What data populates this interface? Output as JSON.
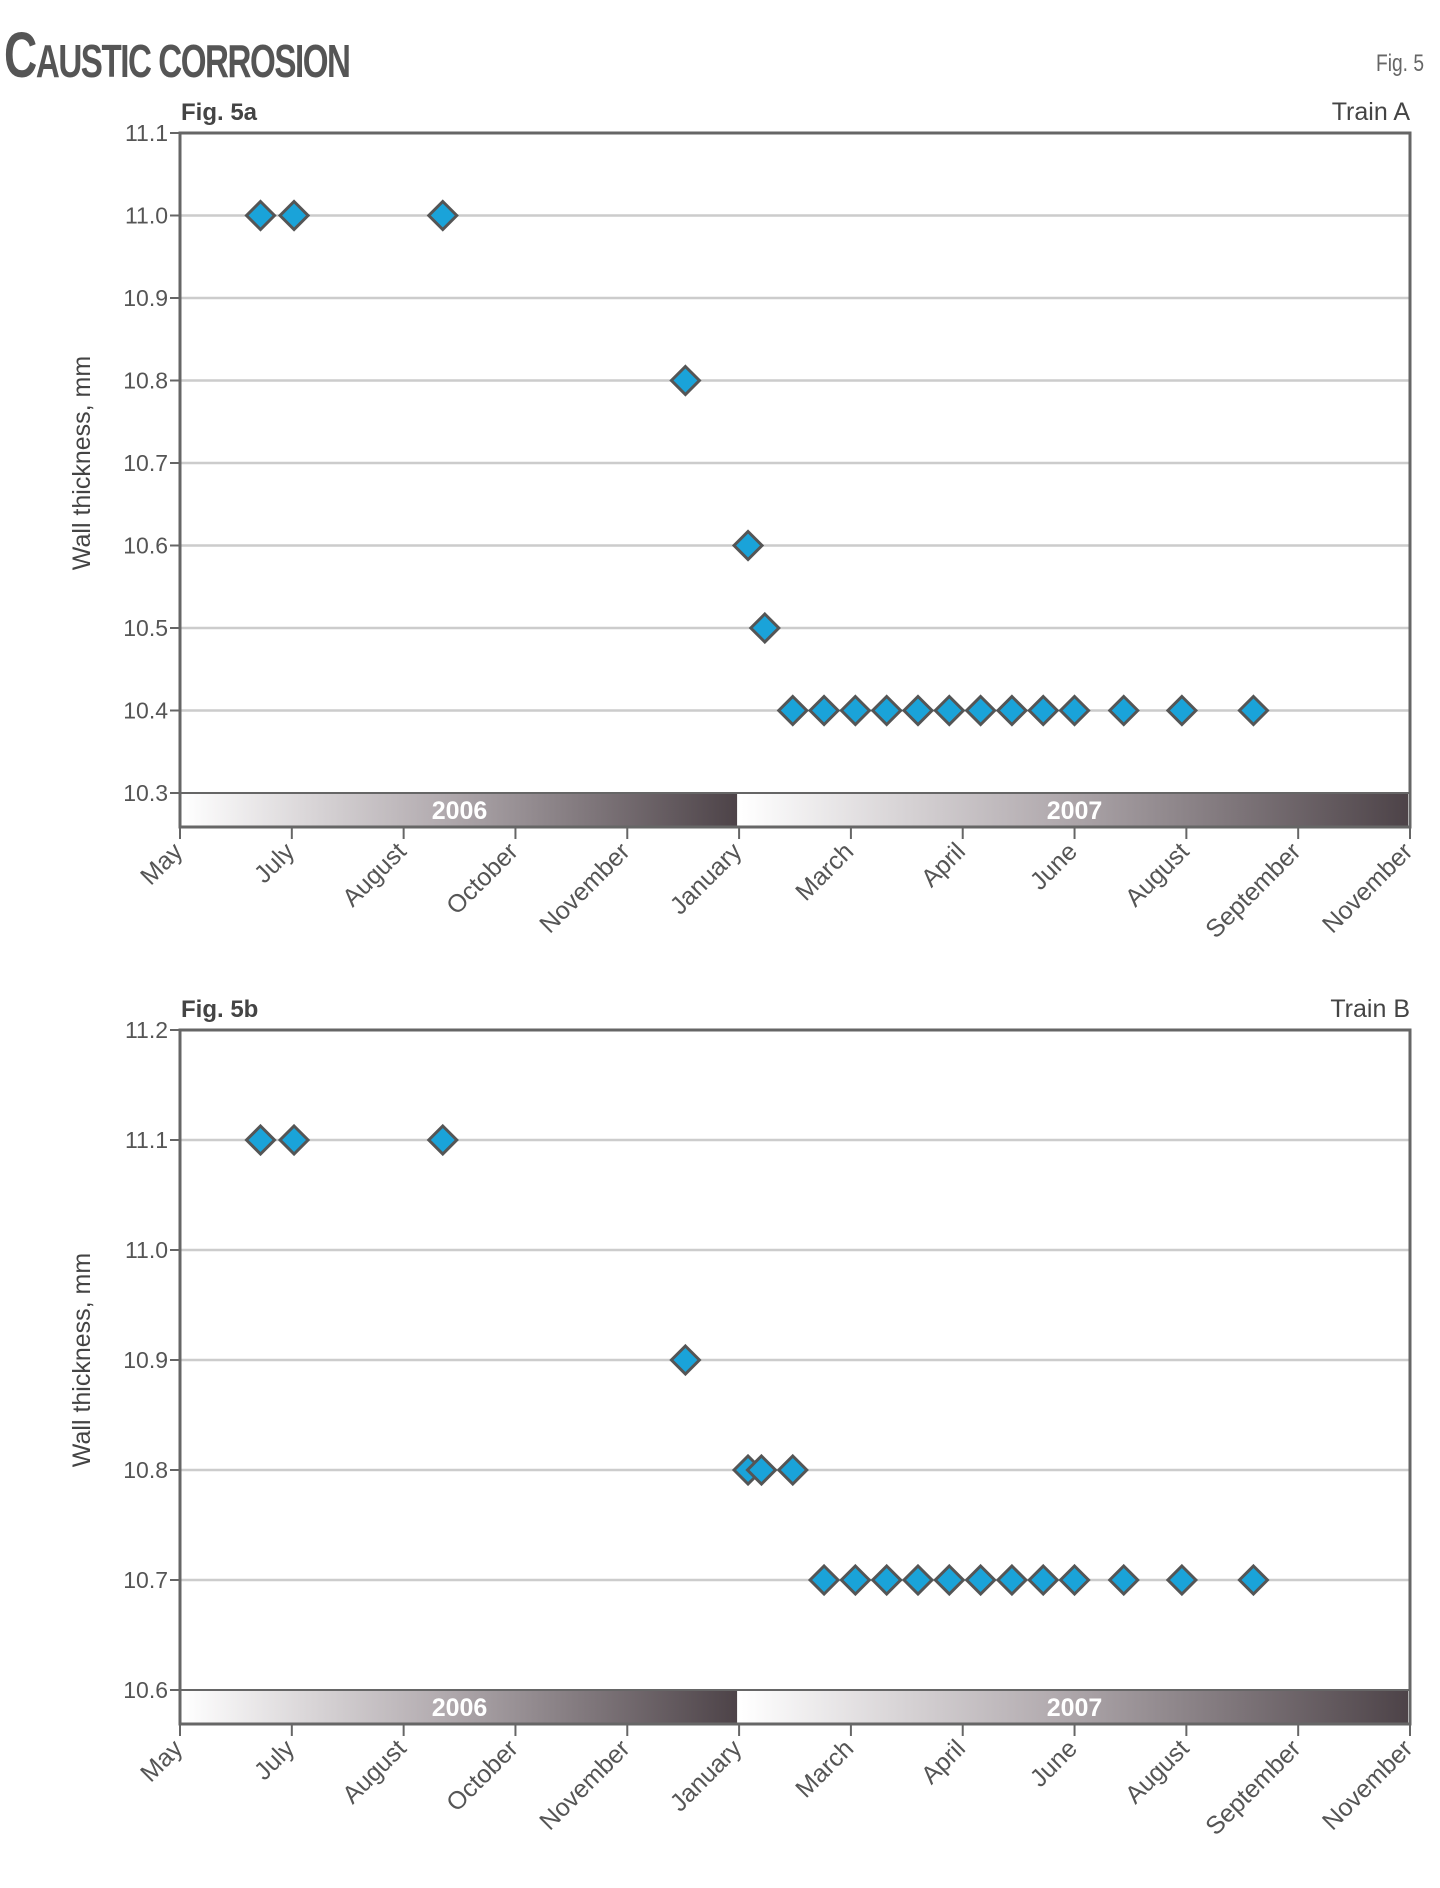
{
  "title": {
    "first_letter": "C",
    "rest": "austic corrosion"
  },
  "fig_label": "Fig. 5",
  "colors": {
    "marker": "#1aa3d9",
    "marker_edge": "#555555",
    "grid": "#cccccc",
    "axis": "#666666",
    "band_dark": "#5a5055",
    "band_light": "#ffffff"
  },
  "chart_data": [
    {
      "type": "scatter",
      "panel_label": "Fig. 5a",
      "series_label": "Train A",
      "ylabel": "Wall thickness, mm",
      "xlabel": "",
      "ylim": [
        10.3,
        11.1
      ],
      "yticks": [
        10.3,
        10.4,
        10.5,
        10.6,
        10.7,
        10.8,
        10.9,
        11.0,
        11.1
      ],
      "ytick_labels": [
        "10.3",
        "10.4",
        "10.5",
        "10.6",
        "10.7",
        "10.8",
        "10.9",
        "11.0",
        "11.1"
      ],
      "xlim": [
        0,
        11
      ],
      "xtick_labels": [
        "May",
        "July",
        "August",
        "October",
        "November",
        "January",
        "March",
        "April",
        "June",
        "August",
        "September",
        "November"
      ],
      "year_bands": [
        {
          "label": "2006",
          "start": 0,
          "end": 5
        },
        {
          "label": "2007",
          "start": 5,
          "end": 11
        }
      ],
      "grid": true,
      "x": [
        0.72,
        1.02,
        2.35,
        4.52,
        5.08,
        5.23,
        5.48,
        5.76,
        6.04,
        6.32,
        6.6,
        6.88,
        7.16,
        7.44,
        7.72,
        8.0,
        8.44,
        8.96,
        9.6
      ],
      "y": [
        11.0,
        11.0,
        11.0,
        10.8,
        10.6,
        10.5,
        10.4,
        10.4,
        10.4,
        10.4,
        10.4,
        10.4,
        10.4,
        10.4,
        10.4,
        10.4,
        10.4,
        10.4,
        10.4
      ]
    },
    {
      "type": "scatter",
      "panel_label": "Fig. 5b",
      "series_label": "Train B",
      "ylabel": "Wall thickness, mm",
      "xlabel": "",
      "ylim": [
        10.6,
        11.2
      ],
      "yticks": [
        10.6,
        10.7,
        10.8,
        10.9,
        11.0,
        11.1,
        11.2
      ],
      "ytick_labels": [
        "10.6",
        "10.7",
        "10.8",
        "10.9",
        "11.0",
        "11.1",
        "11.2"
      ],
      "xlim": [
        0,
        11
      ],
      "xtick_labels": [
        "May",
        "July",
        "August",
        "October",
        "November",
        "January",
        "March",
        "April",
        "June",
        "August",
        "September",
        "November"
      ],
      "year_bands": [
        {
          "label": "2006",
          "start": 0,
          "end": 5
        },
        {
          "label": "2007",
          "start": 5,
          "end": 11
        }
      ],
      "grid": true,
      "x": [
        0.72,
        1.02,
        2.35,
        4.52,
        5.08,
        5.2,
        5.48,
        5.76,
        6.04,
        6.32,
        6.6,
        6.88,
        7.16,
        7.44,
        7.72,
        8.0,
        8.44,
        8.96,
        9.6
      ],
      "y": [
        11.1,
        11.1,
        11.1,
        10.9,
        10.8,
        10.8,
        10.8,
        10.7,
        10.7,
        10.7,
        10.7,
        10.7,
        10.7,
        10.7,
        10.7,
        10.7,
        10.7,
        10.7,
        10.7
      ]
    }
  ]
}
